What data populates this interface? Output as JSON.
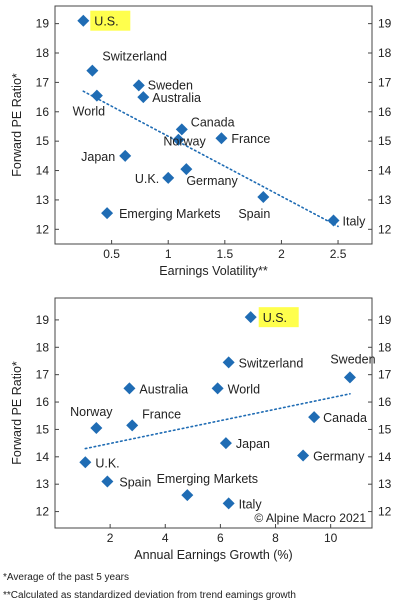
{
  "colors": {
    "marker": "#1f6cb4",
    "trend": "#1f6cb4",
    "highlight": "#ffff4d",
    "frame": "#444444"
  },
  "chart_data": [
    {
      "type": "scatter",
      "xlabel": "Earnings Volatility**",
      "ylabel": "Forward PE Ratio*",
      "xlim": [
        0,
        2.8
      ],
      "ylim": [
        11.5,
        19.6
      ],
      "xticks": [
        0.5,
        1,
        1.5,
        2,
        2.5
      ],
      "yticks": [
        12,
        13,
        14,
        15,
        16,
        17,
        18,
        19
      ],
      "trendline": {
        "style": "dotted",
        "points": [
          [
            0.25,
            16.7
          ],
          [
            2.5,
            12.1
          ]
        ]
      },
      "points": [
        {
          "label": "U.S.",
          "x": 0.25,
          "y": 19.1,
          "highlight": true
        },
        {
          "label": "Switzerland",
          "x": 0.33,
          "y": 17.4
        },
        {
          "label": "World",
          "x": 0.37,
          "y": 16.55
        },
        {
          "label": "Sweden",
          "x": 0.74,
          "y": 16.9
        },
        {
          "label": "Australia",
          "x": 0.78,
          "y": 16.5
        },
        {
          "label": "Canada",
          "x": 1.12,
          "y": 15.4
        },
        {
          "label": "France",
          "x": 1.47,
          "y": 15.1
        },
        {
          "label": "Norway",
          "x": 1.09,
          "y": 15.05
        },
        {
          "label": "Japan",
          "x": 0.62,
          "y": 14.5
        },
        {
          "label": "Germany",
          "x": 1.16,
          "y": 14.05
        },
        {
          "label": "U.K.",
          "x": 1.0,
          "y": 13.75
        },
        {
          "label": "Spain",
          "x": 1.84,
          "y": 13.1
        },
        {
          "label": "Emerging Markets",
          "x": 0.46,
          "y": 12.55
        },
        {
          "label": "Italy",
          "x": 2.46,
          "y": 12.3
        }
      ]
    },
    {
      "type": "scatter",
      "xlabel": "Annual Earnings Growth (%)",
      "ylabel": "Forward PE Ratio*",
      "xlim": [
        0,
        11.5
      ],
      "ylim": [
        11.4,
        19.8
      ],
      "xticks": [
        2,
        4,
        6,
        8,
        10
      ],
      "yticks": [
        12,
        13,
        14,
        15,
        16,
        17,
        18,
        19
      ],
      "trendline": {
        "style": "dotted",
        "points": [
          [
            1.1,
            14.3
          ],
          [
            10.7,
            16.3
          ]
        ]
      },
      "annotation": "© Alpine Macro 2021",
      "points": [
        {
          "label": "U.S.",
          "x": 7.1,
          "y": 19.1,
          "highlight": true
        },
        {
          "label": "Switzerland",
          "x": 6.3,
          "y": 17.45
        },
        {
          "label": "Sweden",
          "x": 10.7,
          "y": 16.9
        },
        {
          "label": "Australia",
          "x": 2.7,
          "y": 16.5
        },
        {
          "label": "World",
          "x": 5.9,
          "y": 16.5
        },
        {
          "label": "Canada",
          "x": 9.4,
          "y": 15.45
        },
        {
          "label": "Norway",
          "x": 1.5,
          "y": 15.05
        },
        {
          "label": "France",
          "x": 2.8,
          "y": 15.15
        },
        {
          "label": "Japan",
          "x": 6.2,
          "y": 14.5
        },
        {
          "label": "Germany",
          "x": 9.0,
          "y": 14.05
        },
        {
          "label": "U.K.",
          "x": 1.1,
          "y": 13.8
        },
        {
          "label": "Spain",
          "x": 1.9,
          "y": 13.1
        },
        {
          "label": "Emerging Markets",
          "x": 4.8,
          "y": 12.6
        },
        {
          "label": "Italy",
          "x": 6.3,
          "y": 12.3
        }
      ]
    }
  ],
  "footnotes": [
    "*Average of the past 5 years",
    "**Calculated as standardized deviation from trend eamings growth"
  ]
}
